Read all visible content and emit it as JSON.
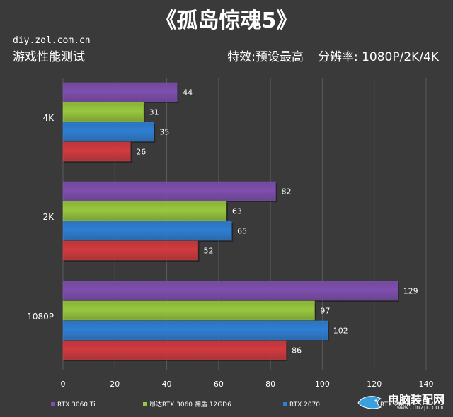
{
  "header": {
    "title": "《孤岛惊魂5》",
    "site": "diy.zol.com.cn",
    "subtitle": "游戏性能测试",
    "effects": "特效:预设最高",
    "resolution": "分辨率: 1080P/2K/4K"
  },
  "watermark": {
    "name": "电脑装配网",
    "url": "www.dnzp.com"
  },
  "colors": {
    "background": "#3a3a3a",
    "grid": "#5a5a5a",
    "text": "#ffffff"
  },
  "chart_data": {
    "type": "bar",
    "orientation": "horizontal",
    "categories": [
      "4K",
      "2K",
      "1080P"
    ],
    "series": [
      {
        "name": "RTX 3060 Ti",
        "color": "#7f4fb0",
        "values": [
          44,
          82,
          129
        ]
      },
      {
        "name": "昂达RTX 3060 神盾 12GD6",
        "color": "#98c83e",
        "values": [
          31,
          63,
          97
        ]
      },
      {
        "name": "RTX 2070",
        "color": "#2f7fd4",
        "values": [
          35,
          65,
          102
        ]
      },
      {
        "name": "RTX 2060",
        "color": "#d23a3f",
        "values": [
          26,
          52,
          86
        ]
      }
    ],
    "xlim": [
      0,
      140
    ],
    "xticks": [
      0,
      20,
      40,
      60,
      80,
      100,
      120,
      140
    ],
    "grid": true,
    "legend": "bottom"
  }
}
